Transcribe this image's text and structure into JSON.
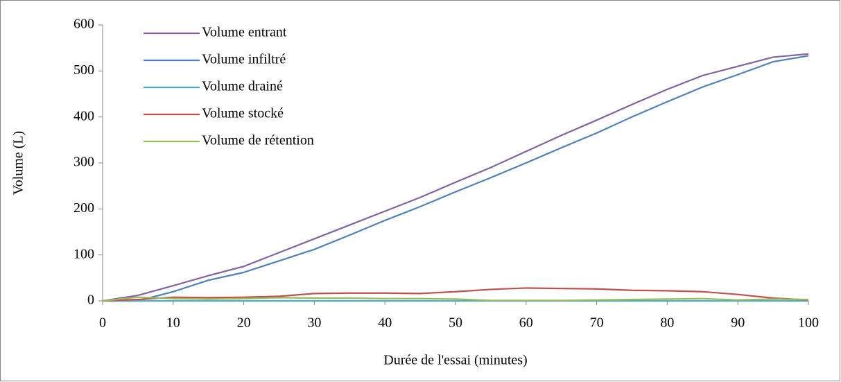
{
  "chart_data": {
    "type": "line",
    "x_label": "Durée de l'essai (minutes)",
    "y_label": "Volume (L)",
    "x": [
      0,
      5,
      10,
      15,
      20,
      25,
      30,
      35,
      40,
      45,
      50,
      55,
      60,
      65,
      70,
      75,
      80,
      85,
      90,
      95,
      100
    ],
    "series": [
      {
        "name": "Volume entrant",
        "color": "#8064a2",
        "values": [
          0,
          12,
          33,
          55,
          75,
          105,
          135,
          165,
          195,
          225,
          258,
          290,
          325,
          360,
          393,
          427,
          460,
          490,
          510,
          530,
          537
        ]
      },
      {
        "name": "Volume infiltré",
        "color": "#4f81bd",
        "values": [
          0,
          0,
          20,
          45,
          62,
          87,
          112,
          143,
          175,
          205,
          237,
          268,
          300,
          333,
          365,
          400,
          433,
          465,
          492,
          520,
          533
        ]
      },
      {
        "name": "Volume drainé",
        "color": "#4bacc6",
        "values": [
          0,
          0,
          0,
          0,
          0,
          0,
          0,
          0,
          0,
          0,
          0,
          0,
          0,
          0,
          0,
          0,
          0,
          0,
          0,
          0,
          0
        ]
      },
      {
        "name": "Volume stocké",
        "color": "#c0504d",
        "values": [
          0,
          3,
          8,
          7,
          8,
          10,
          16,
          17,
          17,
          16,
          20,
          25,
          28,
          27,
          26,
          23,
          22,
          20,
          14,
          6,
          2
        ]
      },
      {
        "name": "Volume de rétention",
        "color": "#9bbb59",
        "values": [
          0,
          8,
          5,
          4,
          5,
          7,
          6,
          6,
          5,
          5,
          4,
          1,
          1,
          1,
          2,
          3,
          4,
          5,
          2,
          4,
          3
        ]
      }
    ],
    "xlim": [
      0,
      100
    ],
    "xticks": [
      0,
      10,
      20,
      30,
      40,
      50,
      60,
      70,
      80,
      90,
      100
    ],
    "ylim": [
      0,
      600
    ],
    "yticks": [
      0,
      100,
      200,
      300,
      400,
      500,
      600
    ],
    "legend": "upper left"
  }
}
